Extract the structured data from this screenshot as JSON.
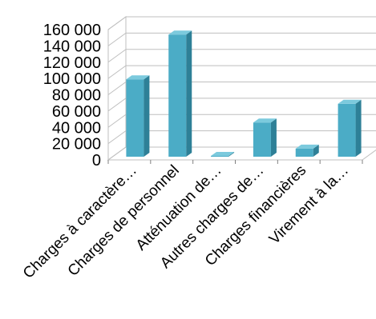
{
  "chart_data": {
    "type": "bar",
    "categories": [
      "Charges à caractère…",
      "Charges de personnel",
      "Atténuation de…",
      "Autres charges de…",
      "Charges financières",
      "Virement à la…"
    ],
    "values": [
      95000,
      150000,
      1000,
      42000,
      10000,
      65000
    ],
    "yticks": [
      "0",
      "20 000",
      "40 000",
      "60 000",
      "80 000",
      "100 000",
      "120 000",
      "140 000",
      "160 000"
    ],
    "ylim": [
      0,
      160000
    ],
    "grid": true,
    "legend": "none",
    "colors": {
      "bar_front": "#4BACC6",
      "bar_side": "#2E8097",
      "bar_top": "#7CCADD",
      "grid": "#BFBFBF"
    }
  }
}
